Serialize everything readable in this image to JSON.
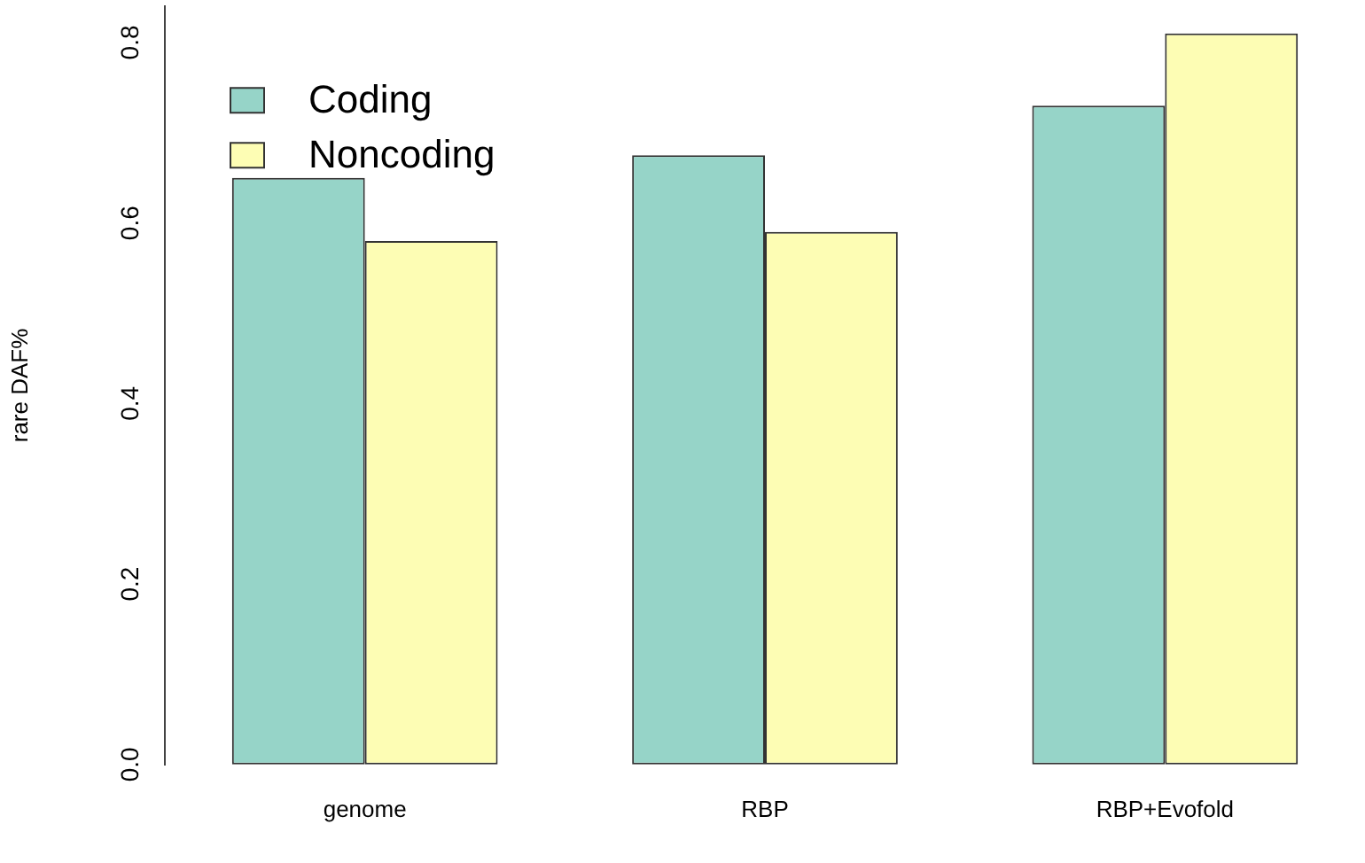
{
  "chart_data": {
    "type": "bar",
    "ylabel": "rare DAF%",
    "categories": [
      "genome",
      "RBP",
      "RBP+Evofold"
    ],
    "series": [
      {
        "name": "Coding",
        "color": "#96d4c8",
        "values": [
          0.65,
          0.675,
          0.73
        ]
      },
      {
        "name": "Noncoding",
        "color": "#fdfdb4",
        "values": [
          0.58,
          0.59,
          0.81
        ]
      }
    ],
    "ylim": [
      0,
      0.84
    ],
    "yticks": [
      {
        "value": 0,
        "label": "0.0"
      },
      {
        "value": 0.2,
        "label": "0.2"
      },
      {
        "value": 0.4,
        "label": "0.4"
      },
      {
        "value": 0.6,
        "label": "0.6"
      },
      {
        "value": 0.8,
        "label": "0.8"
      }
    ],
    "legend": "top left",
    "grid": false
  }
}
